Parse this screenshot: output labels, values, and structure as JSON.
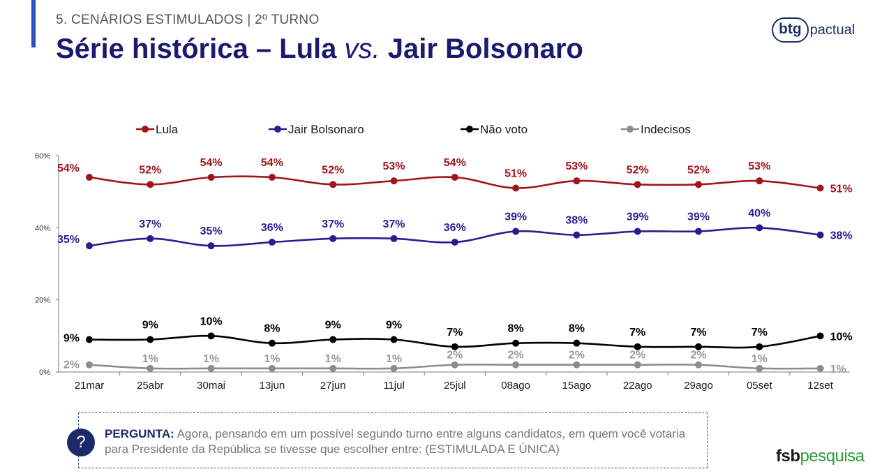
{
  "header": {
    "section": "5. CENÁRIOS ESTIMULADOS | 2º TURNO",
    "title_part1": "Série histórica – Lula ",
    "title_vs": "vs.",
    "title_part2": " Jair Bolsonaro"
  },
  "logo": {
    "bold": "btg",
    "light": "pactual"
  },
  "footer_logo": {
    "part1": "fsb",
    "part2": "pesquisa"
  },
  "question": {
    "icon": "?",
    "label": "PERGUNTA:",
    "text": " Agora, pensando em um possível segundo turno entre alguns candidatos, em quem você votaria para Presidente da República se tivesse que escolher entre: (ESTIMULADA E ÚNICA)"
  },
  "colors": {
    "accent": "#2a52be",
    "title": "#1a1a6e",
    "lula": "#a0151c",
    "bolsonaro": "#2e1a8f",
    "nao_voto": "#000000",
    "indecisos": "#8c8c8c"
  },
  "chart_data": {
    "type": "line",
    "categories": [
      "21mar",
      "25abr",
      "30mai",
      "13jun",
      "27jun",
      "11jul",
      "25jul",
      "08ago",
      "15ago",
      "22ago",
      "29ago",
      "05set",
      "12set"
    ],
    "ylim": [
      0,
      60
    ],
    "yticks": [
      "0%",
      "20%",
      "40%",
      "60%"
    ],
    "grid": false,
    "legend_position": "top",
    "series": [
      {
        "name": "Lula",
        "color": "#a0151c",
        "values": [
          54,
          52,
          54,
          54,
          52,
          53,
          54,
          51,
          53,
          52,
          52,
          53,
          51
        ],
        "labels": [
          "54%",
          "52%",
          "54%",
          "54%",
          "52%",
          "53%",
          "54%",
          "51%",
          "53%",
          "52%",
          "52%",
          "53%",
          "51%"
        ]
      },
      {
        "name": "Jair Bolsonaro",
        "color": "#2e1a8f",
        "values": [
          35,
          37,
          35,
          36,
          37,
          37,
          36,
          39,
          38,
          39,
          39,
          40,
          38
        ],
        "labels": [
          "35%",
          "37%",
          "35%",
          "36%",
          "37%",
          "37%",
          "36%",
          "39%",
          "38%",
          "39%",
          "39%",
          "40%",
          "38%"
        ]
      },
      {
        "name": "Não voto",
        "color": "#000000",
        "values": [
          9,
          9,
          10,
          8,
          9,
          9,
          7,
          8,
          8,
          7,
          7,
          7,
          10
        ],
        "labels": [
          "9%",
          "9%",
          "10%",
          "8%",
          "9%",
          "9%",
          "7%",
          "8%",
          "8%",
          "7%",
          "7%",
          "7%",
          "10%"
        ]
      },
      {
        "name": "Indecisos",
        "color": "#8c8c8c",
        "values": [
          2,
          1,
          1,
          1,
          1,
          1,
          2,
          2,
          2,
          2,
          2,
          1,
          1
        ],
        "labels": [
          "2%",
          "1%",
          "1%",
          "1%",
          "1%",
          "1%",
          "2%",
          "2%",
          "2%",
          "2%",
          "2%",
          "1%",
          "1%"
        ]
      }
    ]
  }
}
